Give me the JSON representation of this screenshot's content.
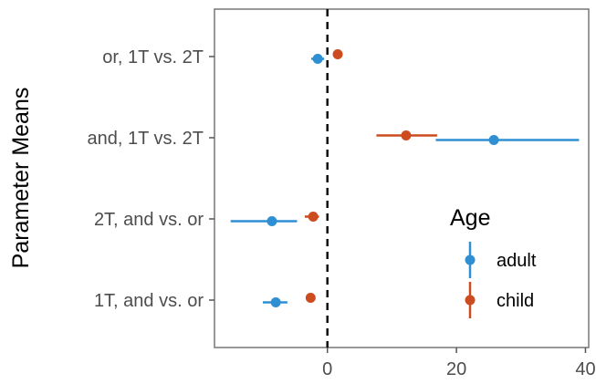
{
  "chart_data": {
    "type": "point-range",
    "title": "",
    "xlabel": "",
    "ylabel": "Parameter Means",
    "xlim": [
      -17.5,
      40.5
    ],
    "x_ticks": [
      0,
      20,
      40
    ],
    "categories": [
      "or, 1T vs. 2T",
      "and, 1T vs. 2T",
      "2T, and vs. or",
      "1T, and vs. or"
    ],
    "reference_line": {
      "x": 0,
      "style": "dashed"
    },
    "legend": {
      "title": "Age",
      "position": "right-inside-bottom"
    },
    "series": [
      {
        "name": "adult",
        "color": "#2f8fd3",
        "points": [
          {
            "category": "or, 1T vs. 2T",
            "mean": -1.5,
            "low": -2.5,
            "high": -0.5
          },
          {
            "category": "and, 1T vs. 2T",
            "mean": 25.8,
            "low": 16.8,
            "high": 39.0
          },
          {
            "category": "2T, and vs. or",
            "mean": -8.6,
            "low": -15.0,
            "high": -4.7
          },
          {
            "category": "1T, and vs. or",
            "mean": -8.0,
            "low": -10.0,
            "high": -6.2
          }
        ]
      },
      {
        "name": "child",
        "color": "#cc4b1f",
        "points": [
          {
            "category": "or, 1T vs. 2T",
            "mean": 1.6,
            "low": 1.2,
            "high": 2.2
          },
          {
            "category": "and, 1T vs. 2T",
            "mean": 12.2,
            "low": 7.6,
            "high": 17.0
          },
          {
            "category": "2T, and vs. or",
            "mean": -2.2,
            "low": -3.5,
            "high": -1.3
          },
          {
            "category": "1T, and vs. or",
            "mean": -2.6,
            "low": -3.3,
            "high": -1.9
          }
        ]
      }
    ]
  }
}
